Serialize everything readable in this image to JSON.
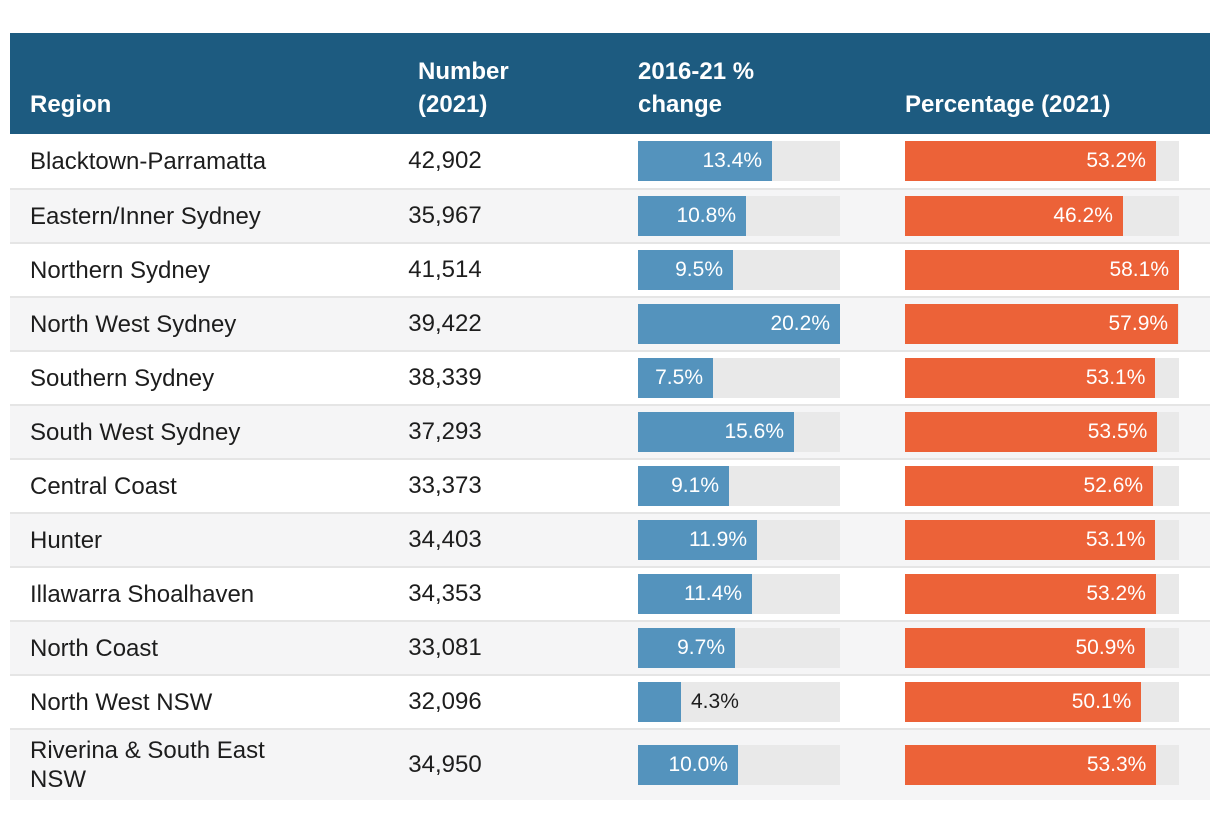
{
  "table": {
    "headers": {
      "region": "Region",
      "number": "Number\n(2021)",
      "change": "2016-21 %\nchange",
      "pct": "Percentage (2021)"
    },
    "rows": [
      {
        "region": "Blacktown-Parramatta",
        "number": "42,902",
        "change": 13.4,
        "change_label": "13.4%",
        "pct": 53.2,
        "pct_label": "53.2%"
      },
      {
        "region": "Eastern/Inner Sydney",
        "number": "35,967",
        "change": 10.8,
        "change_label": "10.8%",
        "pct": 46.2,
        "pct_label": "46.2%"
      },
      {
        "region": "Northern Sydney",
        "number": "41,514",
        "change": 9.5,
        "change_label": "9.5%",
        "pct": 58.1,
        "pct_label": "58.1%"
      },
      {
        "region": "North West Sydney",
        "number": "39,422",
        "change": 20.2,
        "change_label": "20.2%",
        "pct": 57.9,
        "pct_label": "57.9%"
      },
      {
        "region": "Southern Sydney",
        "number": "38,339",
        "change": 7.5,
        "change_label": "7.5%",
        "pct": 53.1,
        "pct_label": "53.1%"
      },
      {
        "region": "South West Sydney",
        "number": "37,293",
        "change": 15.6,
        "change_label": "15.6%",
        "pct": 53.5,
        "pct_label": "53.5%"
      },
      {
        "region": "Central Coast",
        "number": "33,373",
        "change": 9.1,
        "change_label": "9.1%",
        "pct": 52.6,
        "pct_label": "52.6%"
      },
      {
        "region": "Hunter",
        "number": "34,403",
        "change": 11.9,
        "change_label": "11.9%",
        "pct": 53.1,
        "pct_label": "53.1%"
      },
      {
        "region": "Illawarra Shoalhaven",
        "number": "34,353",
        "change": 11.4,
        "change_label": "11.4%",
        "pct": 53.2,
        "pct_label": "53.2%"
      },
      {
        "region": "North Coast",
        "number": "33,081",
        "change": 9.7,
        "change_label": "9.7%",
        "pct": 50.9,
        "pct_label": "50.9%"
      },
      {
        "region": "North West NSW",
        "number": "32,096",
        "change": 4.3,
        "change_label": "4.3%",
        "pct": 50.1,
        "pct_label": "50.1%"
      },
      {
        "region": "Riverina & South East NSW",
        "number": "34,950",
        "change": 10.0,
        "change_label": "10.0%",
        "pct": 53.3,
        "pct_label": "53.3%"
      }
    ]
  },
  "chart_data": {
    "type": "table",
    "title": "",
    "categories": [
      "Blacktown-Parramatta",
      "Eastern/Inner Sydney",
      "Northern Sydney",
      "North West Sydney",
      "Southern Sydney",
      "South West Sydney",
      "Central Coast",
      "Hunter",
      "Illawarra Shoalhaven",
      "North Coast",
      "North West NSW",
      "Riverina & South East NSW"
    ],
    "series": [
      {
        "name": "Number (2021)",
        "values": [
          42902,
          35967,
          41514,
          39422,
          38339,
          37293,
          33373,
          34403,
          34353,
          33081,
          32096,
          34950
        ]
      },
      {
        "name": "2016-21 % change",
        "values": [
          13.4,
          10.8,
          9.5,
          20.2,
          7.5,
          15.6,
          9.1,
          11.9,
          11.4,
          9.7,
          4.3,
          10.0
        ],
        "color": "#5493bd",
        "axis_min": 0,
        "axis_max": 20.2
      },
      {
        "name": "Percentage (2021)",
        "values": [
          53.2,
          46.2,
          58.1,
          57.9,
          53.1,
          53.5,
          52.6,
          53.1,
          53.2,
          50.9,
          50.1,
          53.3
        ],
        "color": "#ec6238",
        "axis_min": 0,
        "axis_max": 58.1
      }
    ],
    "change_axis_max": 20.2,
    "pct_axis_max": 58.1,
    "legend_position": "none",
    "grid": false
  },
  "colors": {
    "header_bg": "#1d5b80",
    "change_bar": "#5493bd",
    "pct_bar": "#ec6238",
    "bar_track": "#e9e9e9",
    "alt_row_bg": "#f5f5f6"
  }
}
